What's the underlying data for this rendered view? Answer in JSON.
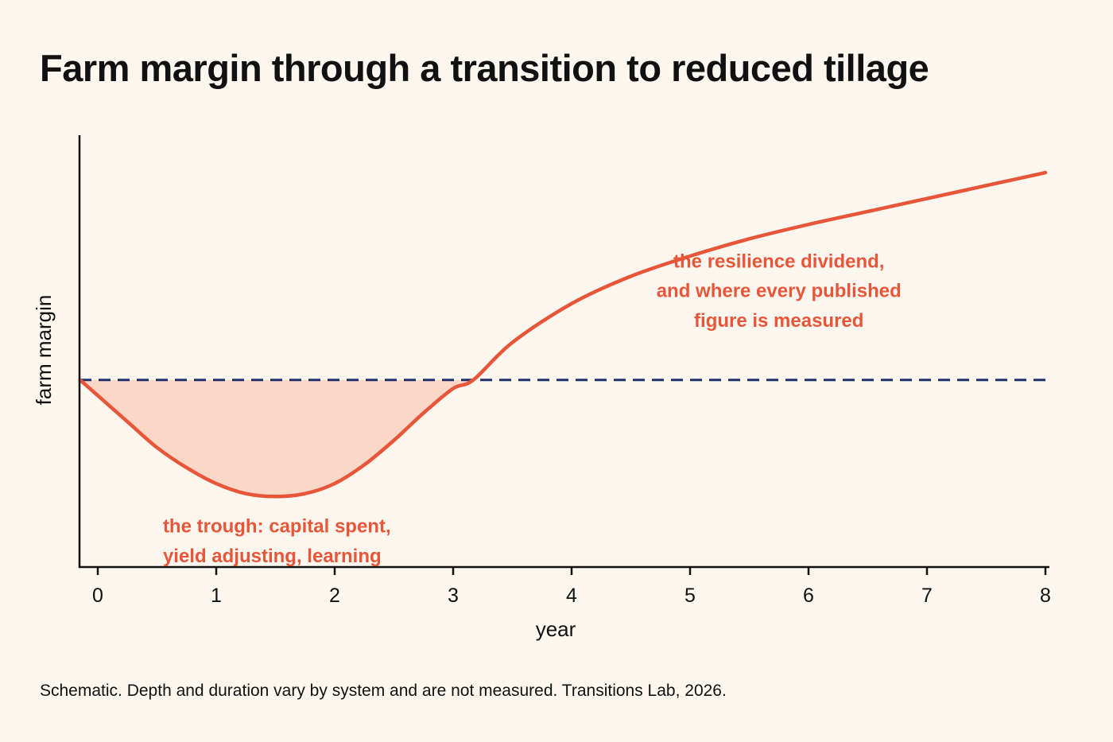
{
  "chart_data": {
    "type": "line",
    "title": "Farm margin through a transition to reduced tillage",
    "xlabel": "year",
    "ylabel": "farm margin",
    "xlim": [
      -0.15,
      8.0
    ],
    "ylim": [
      -6.5,
      8.5
    ],
    "x_ticks": [
      0,
      1,
      2,
      3,
      4,
      5,
      6,
      7,
      8
    ],
    "grid": false,
    "legend": "none",
    "series": [
      {
        "values_x": [
          -0.15,
          0.25,
          0.5,
          0.75,
          1.0,
          1.25,
          1.5,
          1.75,
          2.0,
          2.25,
          2.5,
          2.75,
          3.0,
          3.17,
          3.5,
          4.0,
          4.5,
          5.0,
          5.5,
          6.0,
          6.5,
          7.0,
          7.5,
          8.0
        ],
        "values_y": [
          0,
          -1.45,
          -2.35,
          -3.05,
          -3.6,
          -3.95,
          -4.05,
          -3.95,
          -3.6,
          -2.95,
          -2.1,
          -1.15,
          -0.3,
          0,
          1.3,
          2.65,
          3.6,
          4.3,
          4.9,
          5.4,
          5.85,
          6.3,
          6.75,
          7.2
        ],
        "color": "#e8563a"
      }
    ],
    "reference_line": {
      "y": 0,
      "style": "dashed",
      "color": "#1f3270"
    },
    "shaded_region": {
      "description": "area between curve and baseline where margin is below baseline",
      "x_range": [
        -0.15,
        3.17
      ],
      "color": "#fbd3c3"
    },
    "annotations": [
      {
        "id": "trough",
        "lines": [
          "the trough: capital spent,",
          "yield adjusting, learning"
        ],
        "x": 0.55,
        "y": -5.3,
        "align": "left",
        "color": "#e8563a"
      },
      {
        "id": "dividend",
        "lines": [
          "the resilience dividend,",
          "and where every published",
          "figure is measured"
        ],
        "x": 5.75,
        "y": 3.9,
        "align": "center",
        "color": "#e8563a"
      }
    ]
  },
  "footnote": "Schematic. Depth and duration vary by system and are not measured. Transitions Lab, 2026.",
  "colors": {
    "background": "#fcf7ee",
    "curve": "#e8563a",
    "shade": "#fbd3c3",
    "baseline": "#1f3270",
    "axis": "#111111",
    "annotation": "#e8563a"
  }
}
